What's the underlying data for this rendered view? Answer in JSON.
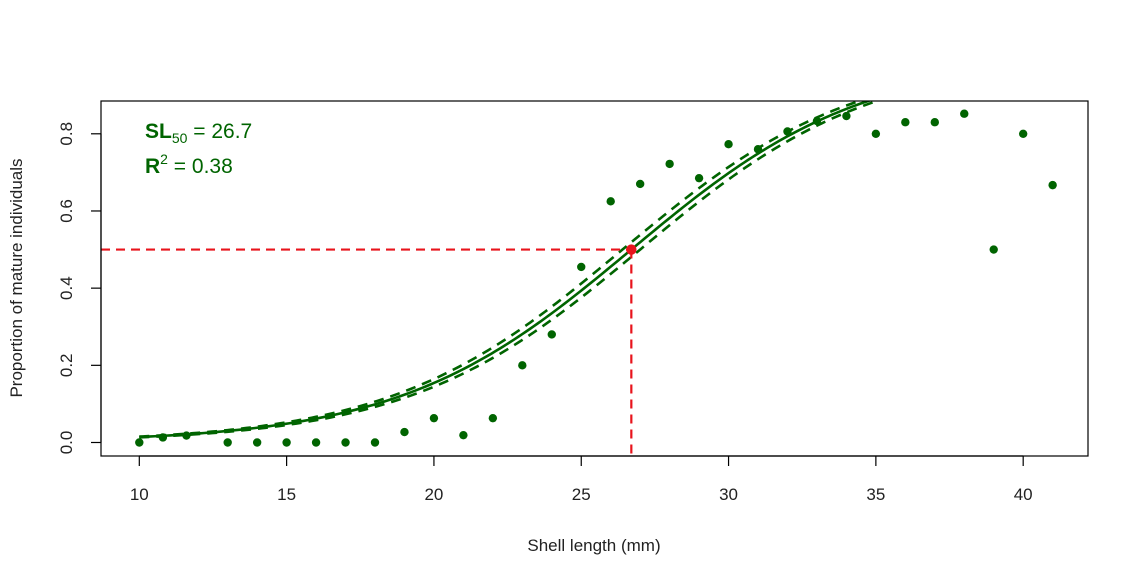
{
  "chart_data": {
    "type": "scatter",
    "title": "",
    "xlabel": "Shell length (mm)",
    "ylabel": "Proportion of mature individuals",
    "xlim": [
      8.7,
      42.2
    ],
    "ylim": [
      -0.035,
      0.885
    ],
    "xticks": [
      10,
      15,
      20,
      25,
      30,
      35,
      40
    ],
    "yticks": [
      0.0,
      0.2,
      0.4,
      0.6,
      0.8
    ],
    "xtick_labels": [
      "10",
      "15",
      "20",
      "25",
      "30",
      "35",
      "40"
    ],
    "ytick_labels": [
      "0.0",
      "0.2",
      "0.4",
      "0.6",
      "0.8"
    ],
    "grid": false,
    "colors": {
      "points": "#006400",
      "curve": "#006400",
      "reference": "#e8141c"
    },
    "series": [
      {
        "type": "scatter",
        "x": [
          10,
          10.8,
          11.6,
          13,
          14,
          15,
          16,
          17,
          18,
          19,
          20,
          21,
          22,
          23,
          24,
          25,
          26,
          27,
          28,
          29,
          30,
          31,
          32,
          33,
          34,
          35,
          36,
          37,
          38,
          39,
          40,
          41
        ],
        "y": [
          0.0,
          0.013,
          0.018,
          0.0,
          0.0,
          0.0,
          0.0,
          0.0,
          0.0,
          0.027,
          0.063,
          0.019,
          0.063,
          0.2,
          0.28,
          0.455,
          0.625,
          0.67,
          0.722,
          0.685,
          0.773,
          0.76,
          0.806,
          0.833,
          0.846,
          0.8,
          0.83,
          0.83,
          0.852,
          0.5,
          0.8,
          0.667
        ]
      },
      {
        "type": "line",
        "model": "logistic",
        "x50": 26.7,
        "slope": 0.254,
        "style": "solid"
      },
      {
        "type": "line",
        "model": "logistic",
        "x50": 26.4,
        "slope": 0.254,
        "style": "dashed"
      },
      {
        "type": "line",
        "model": "logistic",
        "x50": 27.0,
        "slope": 0.254,
        "style": "dashed"
      }
    ],
    "reference": {
      "x": 26.7,
      "y": 0.5,
      "style": "dashed"
    },
    "annotations": {
      "sl_main": "SL",
      "sl_sub": "50",
      "sl_value": " = 26.7",
      "r_main": "R",
      "r_sup": "2",
      "r_value": " = 0.38"
    }
  }
}
